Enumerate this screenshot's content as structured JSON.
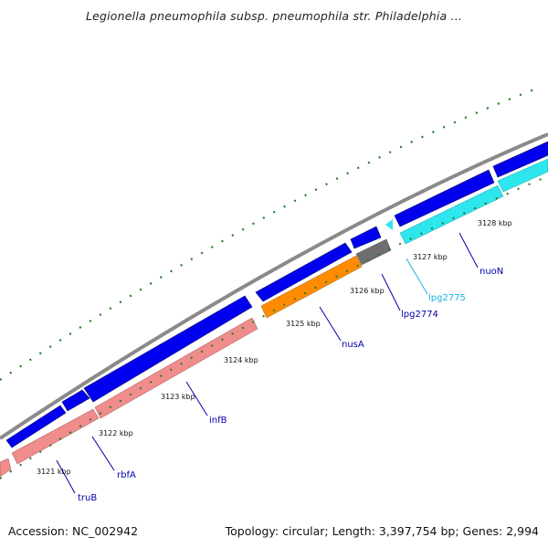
{
  "title": "Legionella pneumophila subsp. pneumophila str. Philadelphia ...",
  "footer": {
    "accession": "Accession: NC_002942",
    "summary": "Topology: circular; Length: 3,397,754 bp; Genes: 2,994"
  },
  "colors": {
    "backbone": "#8a8a8a",
    "forward_cds": "#0000ee",
    "rrna_like": "#f08c8c",
    "orange_gene": "#ff8c00",
    "gray_gene": "#6e6e6e",
    "cyan_gene": "#2ee6ee",
    "tick_dots": "#1e7d1e",
    "label_blue": "#0000aa",
    "label_cyan": "#18b4e6"
  },
  "ticks": [
    "3121 kbp",
    "3122 kbp",
    "3123 kbp",
    "3124 kbp",
    "3125 kbp",
    "3126 kbp",
    "3127 kbp",
    "3128 kbp"
  ],
  "gene_labels": [
    {
      "text": "truB",
      "color": "#0000aa"
    },
    {
      "text": "rbfA",
      "color": "#0000aa"
    },
    {
      "text": "infB",
      "color": "#0000aa"
    },
    {
      "text": "nusA",
      "color": "#0000aa"
    },
    {
      "text": "lpg2774",
      "color": "#0000aa"
    },
    {
      "text": "lpg2775",
      "color": "#18b4e6"
    },
    {
      "text": "nuoN",
      "color": "#0000aa"
    }
  ]
}
